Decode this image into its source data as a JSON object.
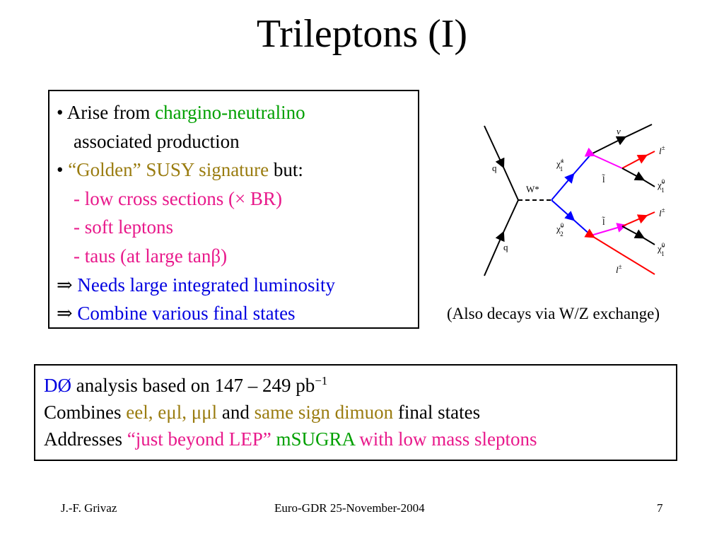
{
  "title": "Trileptons (I)",
  "bullets": {
    "b1_bullet": "•",
    "b1_prefix": "Arise from",
    "b1_highlight": "chargino-neutralino",
    "b1_cont": "associated production",
    "b2_bullet": "•",
    "b2_highlight": "“Golden” SUSY signature",
    "b2_suffix": "but:",
    "sub1": "- low cross sections (× BR)",
    "sub2": "- soft leptons",
    "sub3": "- taus (at large tanβ)",
    "arrow": "⇒",
    "imp1": "Needs large integrated luminosity",
    "imp2": "Combine various final states"
  },
  "diagram": {
    "q_top": "q",
    "q_bottom": "q",
    "w": "W*",
    "chi_pm": "χ̃",
    "chi_pm_sup": "±",
    "chi_pm_sub": "1",
    "chi2": "χ̃",
    "chi2_sup": "0",
    "chi2_sub": "2",
    "nu": "ν",
    "slepton_top": "l̃",
    "slepton_bottom": "l̃",
    "l_pm_1": "l",
    "l_pm_1_sup": "±",
    "chi1_top": "χ̃",
    "chi1_top_sup": "0",
    "chi1_top_sub": "1",
    "l_pm_2": "l",
    "l_pm_2_sup": "±",
    "chi1_bottom": "χ̃",
    "chi1_bottom_sup": "0",
    "chi1_bottom_sub": "1",
    "l_pm_3": "l",
    "l_pm_3_sup": "±"
  },
  "caption": "(Also decays via W/Z exchange)",
  "analysis": {
    "d0": "DØ",
    "line1_rest": "analysis based on 147 – 249 pb",
    "line1_sup": "−1",
    "line2_prefix": "Combines",
    "line2_channels": "eel, eμl, μμl",
    "line2_and": "and",
    "line2_dimuon": "same sign dimuon",
    "line2_suffix": "final states",
    "line3_prefix": "Addresses",
    "line3_quote": "“just beyond LEP”",
    "line3_msugra": "mSUGRA",
    "line3_suffix": "with low mass sleptons"
  },
  "footer": {
    "author": "J.-F. Grivaz",
    "event": "Euro-GDR 25-November-2004",
    "page": "7"
  },
  "colors": {
    "green": "#00a000",
    "gold": "#9a7c10",
    "pink": "#e8198b",
    "blue": "#0000e0",
    "magenta_line": "#ff00ff",
    "red_line": "#ff0000"
  }
}
